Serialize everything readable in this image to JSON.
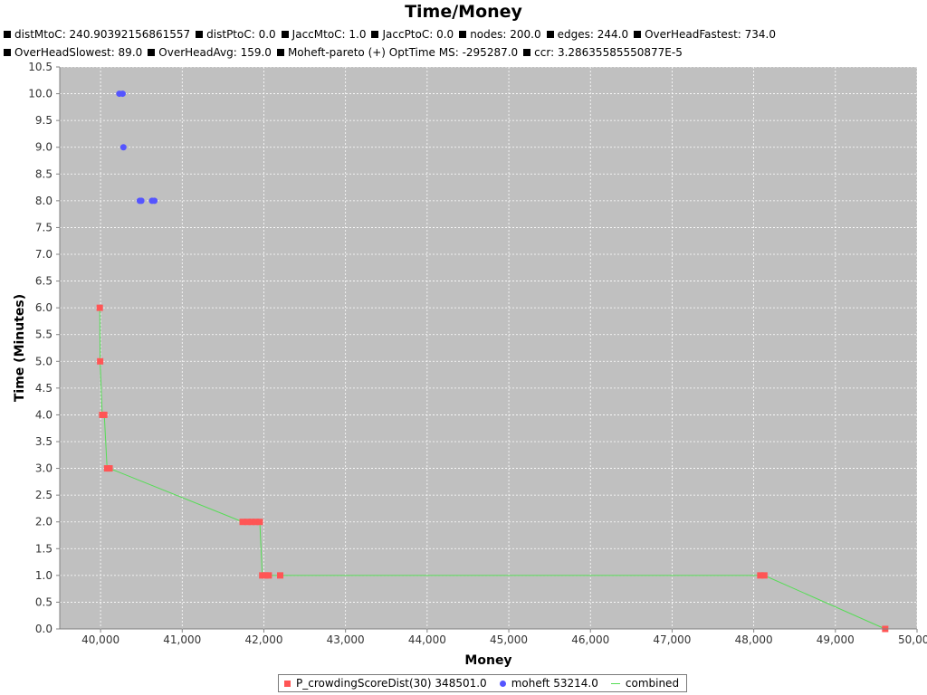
{
  "chart_data": {
    "type": "scatter",
    "title": "Time/Money",
    "subtitles": [
      "distMtoC: 240.90392156861557",
      "distPtoC: 0.0",
      "JaccMtoC: 1.0",
      "JaccPtoC: 0.0",
      "nodes: 200.0",
      "edges: 244.0",
      "OverHeadFastest: 734.0",
      "OverHeadSlowest: 89.0",
      "OverHeadAvg: 159.0",
      "Moheft-pareto (+) OptTime MS: -295287.0",
      "ccr: 3.28635585550877E-5"
    ],
    "xlabel": "Money",
    "ylabel": "Time (Minutes)",
    "xlim": [
      39500,
      50000
    ],
    "ylim": [
      0.0,
      10.5
    ],
    "xticks": [
      "40,000",
      "41,000",
      "42,000",
      "43,000",
      "44,000",
      "45,000",
      "46,000",
      "47,000",
      "48,000",
      "49,000",
      "50,000"
    ],
    "yticks": [
      "0.0",
      "0.5",
      "1.0",
      "1.5",
      "2.0",
      "2.5",
      "3.0",
      "3.5",
      "4.0",
      "4.5",
      "5.0",
      "5.5",
      "6.0",
      "6.5",
      "7.0",
      "7.5",
      "8.0",
      "8.5",
      "9.0",
      "9.5",
      "10.0",
      "10.5"
    ],
    "grid": true,
    "legend_position": "bottom",
    "colors": {
      "plot_bg": "#c0c0c0",
      "series1": "#ff5555",
      "series2": "#5555ff",
      "series3": "#55dd55"
    },
    "series": [
      {
        "name": "P_crowdingScoreDist(30) 348501.0",
        "marker": "square",
        "points": [
          [
            39990,
            6.0
          ],
          [
            39995,
            5.0
          ],
          [
            40020,
            4.0
          ],
          [
            40045,
            4.0
          ],
          [
            40080,
            3.0
          ],
          [
            40110,
            3.0
          ],
          [
            41740,
            2.0
          ],
          [
            41800,
            2.0
          ],
          [
            41850,
            2.0
          ],
          [
            41900,
            2.0
          ],
          [
            41950,
            2.0
          ],
          [
            41980,
            1.0
          ],
          [
            42020,
            1.0
          ],
          [
            42060,
            1.0
          ],
          [
            42200,
            1.0
          ],
          [
            48080,
            1.0
          ],
          [
            48130,
            1.0
          ],
          [
            49610,
            0.0
          ]
        ]
      },
      {
        "name": "moheft 53214.0",
        "marker": "circle",
        "points": [
          [
            40230,
            10.0
          ],
          [
            40270,
            10.0
          ],
          [
            40280,
            9.0
          ],
          [
            40480,
            8.0
          ],
          [
            40500,
            8.0
          ],
          [
            40630,
            8.0
          ],
          [
            40660,
            8.0
          ]
        ]
      },
      {
        "name": "combined",
        "marker": "line",
        "points": [
          [
            39990,
            6.0
          ],
          [
            39995,
            5.0
          ],
          [
            40020,
            4.0
          ],
          [
            40045,
            4.0
          ],
          [
            40080,
            3.0
          ],
          [
            40110,
            3.0
          ],
          [
            41740,
            2.0
          ],
          [
            41950,
            2.0
          ],
          [
            41980,
            1.0
          ],
          [
            42200,
            1.0
          ],
          [
            48080,
            1.0
          ],
          [
            48130,
            1.0
          ],
          [
            49610,
            0.0
          ]
        ]
      }
    ]
  }
}
